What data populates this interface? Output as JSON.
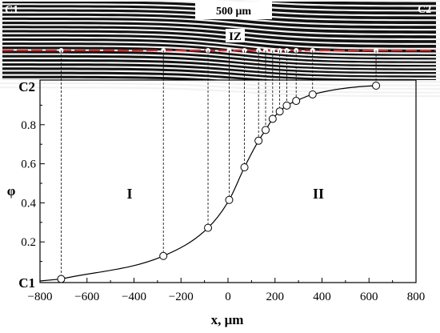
{
  "chart_data": {
    "type": "scatter",
    "x": [
      -710,
      -275,
      -85,
      5,
      70,
      130,
      160,
      190,
      220,
      250,
      290,
      360,
      630
    ],
    "y": [
      0.01,
      0.128,
      0.272,
      0.415,
      0.582,
      0.718,
      0.773,
      0.83,
      0.868,
      0.898,
      0.922,
      0.955,
      1.0
    ],
    "xlabel": "x, μm",
    "ylabel": "φ",
    "xlim": [
      -800,
      800
    ],
    "ylim": [
      0,
      1
    ],
    "x_ticks": [
      "−800",
      "−600",
      "−400",
      "−200",
      "0",
      "200",
      "400",
      "600",
      "800"
    ],
    "y_ticks": [
      "0.2",
      "0.4",
      "0.6",
      "0.8"
    ],
    "y_end_labels": {
      "bottom": "C1",
      "top": "C2"
    },
    "regions": [
      "I",
      "II"
    ],
    "grid": false,
    "marker": "open-circle",
    "fit_curve": true
  },
  "micrograph": {
    "left_label": "C1",
    "right_label": "C2",
    "scale_bar": "500 μm",
    "zone_label": "IZ",
    "line_color": "#cc2b2b"
  }
}
